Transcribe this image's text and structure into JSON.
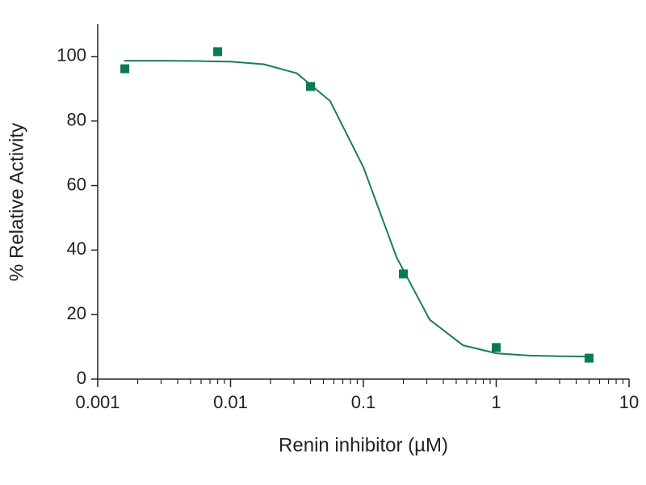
{
  "chart_data": {
    "type": "scatter",
    "xlabel": "Renin inhibitor (µM)",
    "ylabel": "% Relative Activity",
    "xscale": "log",
    "xlim": [
      0.001,
      10
    ],
    "xticks": [
      0.001,
      0.01,
      0.1,
      1,
      10
    ],
    "xminorticks": [
      0.002,
      0.003,
      0.004,
      0.005,
      0.006,
      0.007,
      0.008,
      0.009,
      0.02,
      0.03,
      0.04,
      0.05,
      0.06,
      0.07,
      0.08,
      0.09,
      0.2,
      0.3,
      0.4,
      0.5,
      0.6,
      0.7,
      0.8,
      0.9,
      2,
      3,
      4,
      5,
      6,
      7,
      8,
      9
    ],
    "ylim": [
      0,
      110
    ],
    "yticks": [
      0,
      20,
      40,
      60,
      80,
      100
    ],
    "series": [
      {
        "type": "scatter",
        "color": "#0b7a50",
        "x": [
          0.0016,
          0.008,
          0.04,
          0.2,
          1,
          5
        ],
        "values": [
          96.2,
          101.5,
          90.7,
          32.6,
          9.8,
          6.5
        ]
      },
      {
        "type": "line",
        "color": "#1a7d5e",
        "x": [
          0.00158,
          0.00316,
          0.00562,
          0.01,
          0.0178,
          0.0316,
          0.0562,
          0.1,
          0.178,
          0.316,
          0.562,
          1,
          1.778,
          3.162,
          5.012
        ],
        "values": [
          98.7,
          98.7,
          98.6,
          98.4,
          97.6,
          94.8,
          86.2,
          65.7,
          37.7,
          18.4,
          10.5,
          8.0,
          7.3,
          7.1,
          7.0
        ]
      }
    ]
  }
}
